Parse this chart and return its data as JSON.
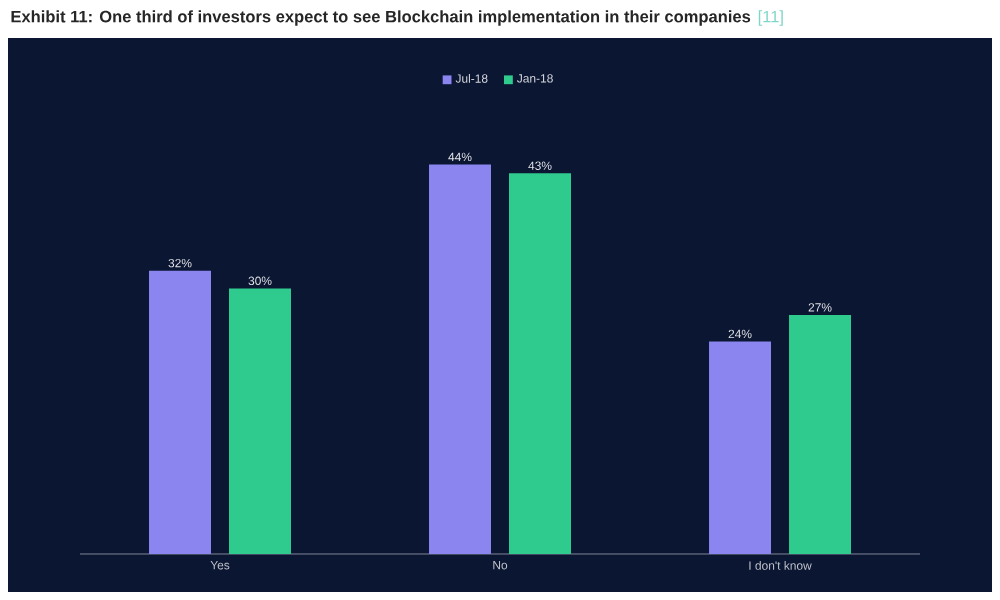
{
  "chart_data": {
    "type": "bar",
    "title": "Exhibit 11: One third of investors expect to see Blockchain implementation in their companies",
    "annotations": [
      "[11]"
    ],
    "categories": [
      "Yes",
      "No",
      "I don't know"
    ],
    "series": [
      {
        "name": "Jul-18",
        "color": "#8a85ef",
        "values": [
          32,
          44,
          24
        ],
        "value_labels": [
          "32%",
          "44%",
          "24%"
        ]
      },
      {
        "name": "Jan-18",
        "color": "#2fcb8e",
        "values": [
          30,
          43,
          27
        ],
        "value_labels": [
          "30%",
          "43%",
          "27%"
        ]
      }
    ],
    "legend": "top"
  }
}
